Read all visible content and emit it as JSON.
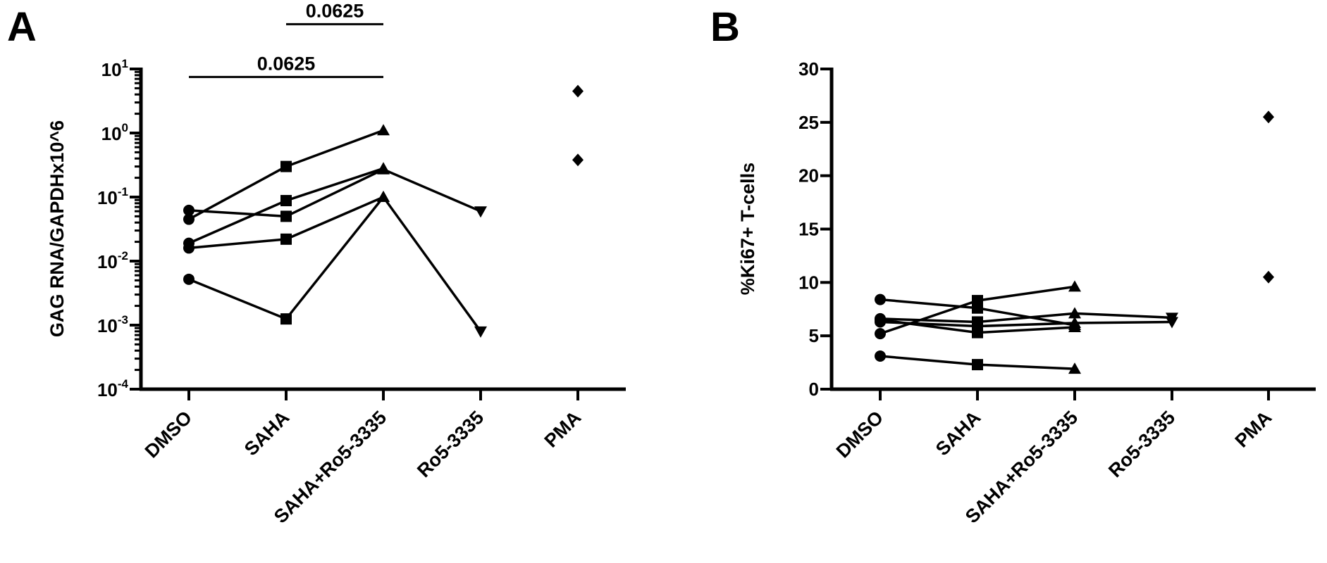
{
  "chart_data": [
    {
      "type": "scatter",
      "panel": "A",
      "ylabel": "GAG RNA/GAPDHx10^6",
      "yscale": "log",
      "ylim": [
        0.0001,
        10
      ],
      "yticks": [
        {
          "value": 0.0001,
          "base": "10",
          "exp": "-4"
        },
        {
          "value": 0.001,
          "base": "10",
          "exp": "-3"
        },
        {
          "value": 0.01,
          "base": "10",
          "exp": "-2"
        },
        {
          "value": 0.1,
          "base": "10",
          "exp": "-1"
        },
        {
          "value": 1,
          "base": "10",
          "exp": "0"
        },
        {
          "value": 10,
          "base": "10",
          "exp": "1"
        }
      ],
      "categories": [
        "DMSO",
        "SAHA",
        "SAHA+Ro5-3335",
        "Ro5-3335",
        "PMA"
      ],
      "markers": [
        "circle",
        "square",
        "triangle-up",
        "triangle-down",
        "diamond"
      ],
      "series": [
        {
          "values": [
            0.062,
            0.05,
            0.27,
            0.06,
            null
          ]
        },
        {
          "values": [
            0.045,
            0.3,
            1.1,
            null,
            null
          ]
        },
        {
          "values": [
            0.019,
            0.088,
            0.28,
            null,
            null
          ]
        },
        {
          "values": [
            0.016,
            0.022,
            0.1,
            0.0008,
            null
          ]
        },
        {
          "values": [
            0.0052,
            0.00125,
            0.1,
            null,
            null
          ]
        },
        {
          "values": [
            null,
            null,
            null,
            null,
            4.5
          ]
        },
        {
          "values": [
            null,
            null,
            null,
            null,
            0.38
          ]
        }
      ],
      "annotations": [
        {
          "text": "0.0625",
          "from": "DMSO",
          "to": "SAHA+Ro5-3335",
          "y": 7.5
        },
        {
          "text": "0.0625",
          "from": "SAHA",
          "to": "SAHA+Ro5-3335",
          "y": 50
        }
      ]
    },
    {
      "type": "scatter",
      "panel": "B",
      "ylabel": "%Ki67+ T-cells",
      "ylim": [
        0,
        30
      ],
      "yticks": [
        "0",
        "5",
        "10",
        "15",
        "20",
        "25",
        "30"
      ],
      "categories": [
        "DMSO",
        "SAHA",
        "SAHA+Ro5-3335",
        "Ro5-3335",
        "PMA"
      ],
      "markers": [
        "circle",
        "square",
        "triangle-up",
        "triangle-down",
        "diamond"
      ],
      "series": [
        {
          "values": [
            8.4,
            7.6,
            6.0,
            null,
            null
          ]
        },
        {
          "values": [
            6.6,
            6.3,
            7.1,
            6.7,
            null
          ]
        },
        {
          "values": [
            6.5,
            5.3,
            5.8,
            null,
            null
          ]
        },
        {
          "values": [
            5.2,
            8.3,
            9.6,
            null,
            null
          ]
        },
        {
          "values": [
            6.3,
            5.9,
            6.2,
            6.3,
            null
          ]
        },
        {
          "values": [
            3.1,
            2.3,
            1.9,
            null,
            null
          ]
        },
        {
          "values": [
            null,
            null,
            null,
            null,
            25.5
          ]
        },
        {
          "values": [
            null,
            null,
            null,
            null,
            10.5
          ]
        }
      ],
      "annotations": []
    }
  ]
}
